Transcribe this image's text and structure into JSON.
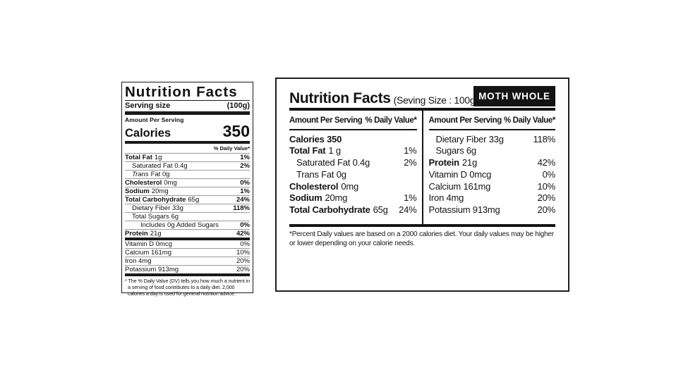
{
  "colors": {
    "ink": "#141414",
    "background": "#ffffff",
    "badge_bg": "#141414",
    "badge_text": "#ffffff",
    "hairline": "#9a9a9a"
  },
  "fda_label": {
    "title": "Nutrition Facts",
    "serving_label": "Serving size",
    "serving_value": "(100g)",
    "amount_per_serving": "Amount Per Serving",
    "calories_label": "Calories",
    "calories_value": "350",
    "daily_value_header": "% Daily Value*",
    "rows": [
      {
        "bold": "Total Fat",
        "it": "",
        "rest": "1g",
        "pct": "1%"
      },
      {
        "bold": "",
        "it": "",
        "rest": "Saturated Fat 0.4g",
        "pct": "2%"
      },
      {
        "bold": "",
        "it": "Trans",
        "rest": "Fat 0g",
        "pct": ""
      },
      {
        "bold": "Cholesterol",
        "it": "",
        "rest": "0mg",
        "pct": "0%"
      },
      {
        "bold": "Sodium",
        "it": "",
        "rest": "20mg",
        "pct": "1%"
      },
      {
        "bold": "Total Carbohydrate",
        "it": "",
        "rest": "65g",
        "pct": "24%"
      },
      {
        "bold": "",
        "it": "",
        "rest": "Dietary Fiber 33g",
        "pct": "118%"
      },
      {
        "bold": "",
        "it": "",
        "rest": "Total Sugars 6g",
        "pct": ""
      },
      {
        "bold": "",
        "it": "",
        "rest": "Includes 0g Added Sugars",
        "pct": "0%"
      },
      {
        "bold": "Protein",
        "it": "",
        "rest": "21g",
        "pct": "42%"
      }
    ],
    "micronutrient_rows": [
      {
        "rest": "Vitamin D 0mcg",
        "pct": "0%"
      },
      {
        "rest": "Calcium 161mg",
        "pct": "10%"
      },
      {
        "rest": "Iron 4mg",
        "pct": "20%"
      },
      {
        "rest": "Potassium 913mg",
        "pct": "20%"
      }
    ],
    "footnote": "* The % Daily Value (DV) tells you how much a nutrient in a serving of food contributes to a daily diet. 2,000 calories a day is used for general nutrition advice."
  },
  "panel_label": {
    "title": "Nutrition Facts",
    "serving_info": "(Seving Size : 100g)",
    "badge": "MOTH WHOLE",
    "col_header_amount": "Amount Per Serving",
    "col_header_dv": "% Daily Value*",
    "left_rows": [
      {
        "bold": "Calories 350",
        "rest": "",
        "pct": ""
      },
      {
        "bold": "Total Fat",
        "rest": "1 g",
        "pct": "1%"
      },
      {
        "bold": "",
        "rest": "Saturated Fat 0.4g",
        "pct": "2%"
      },
      {
        "bold": "",
        "rest": "Trans Fat 0g",
        "pct": ""
      },
      {
        "bold": "Cholesterol",
        "rest": "0mg",
        "pct": ""
      },
      {
        "bold": "Sodium",
        "rest": "20mg",
        "pct": "1%"
      },
      {
        "bold": "Total Carbohydrate",
        "rest": "65g",
        "pct": "24%"
      }
    ],
    "right_rows": [
      {
        "bold": "",
        "rest": "Dietary Fiber 33g",
        "pct": "118%"
      },
      {
        "bold": "",
        "rest": "Sugars 6g",
        "pct": ""
      },
      {
        "bold": "Protein",
        "rest": "21g",
        "pct": "42%"
      },
      {
        "bold": "",
        "rest": "Vitamin D 0mcg",
        "pct": "0%"
      },
      {
        "bold": "",
        "rest": "Calcium 161mg",
        "pct": "10%"
      },
      {
        "bold": "",
        "rest": "Iron 4mg",
        "pct": "20%"
      },
      {
        "bold": "",
        "rest": "Potassium 913mg",
        "pct": "20%"
      }
    ],
    "footnote": "*Percent Daily values are based on a 2000 calories diet. Your daily values may be higher or lower depending on your calorie needs."
  }
}
